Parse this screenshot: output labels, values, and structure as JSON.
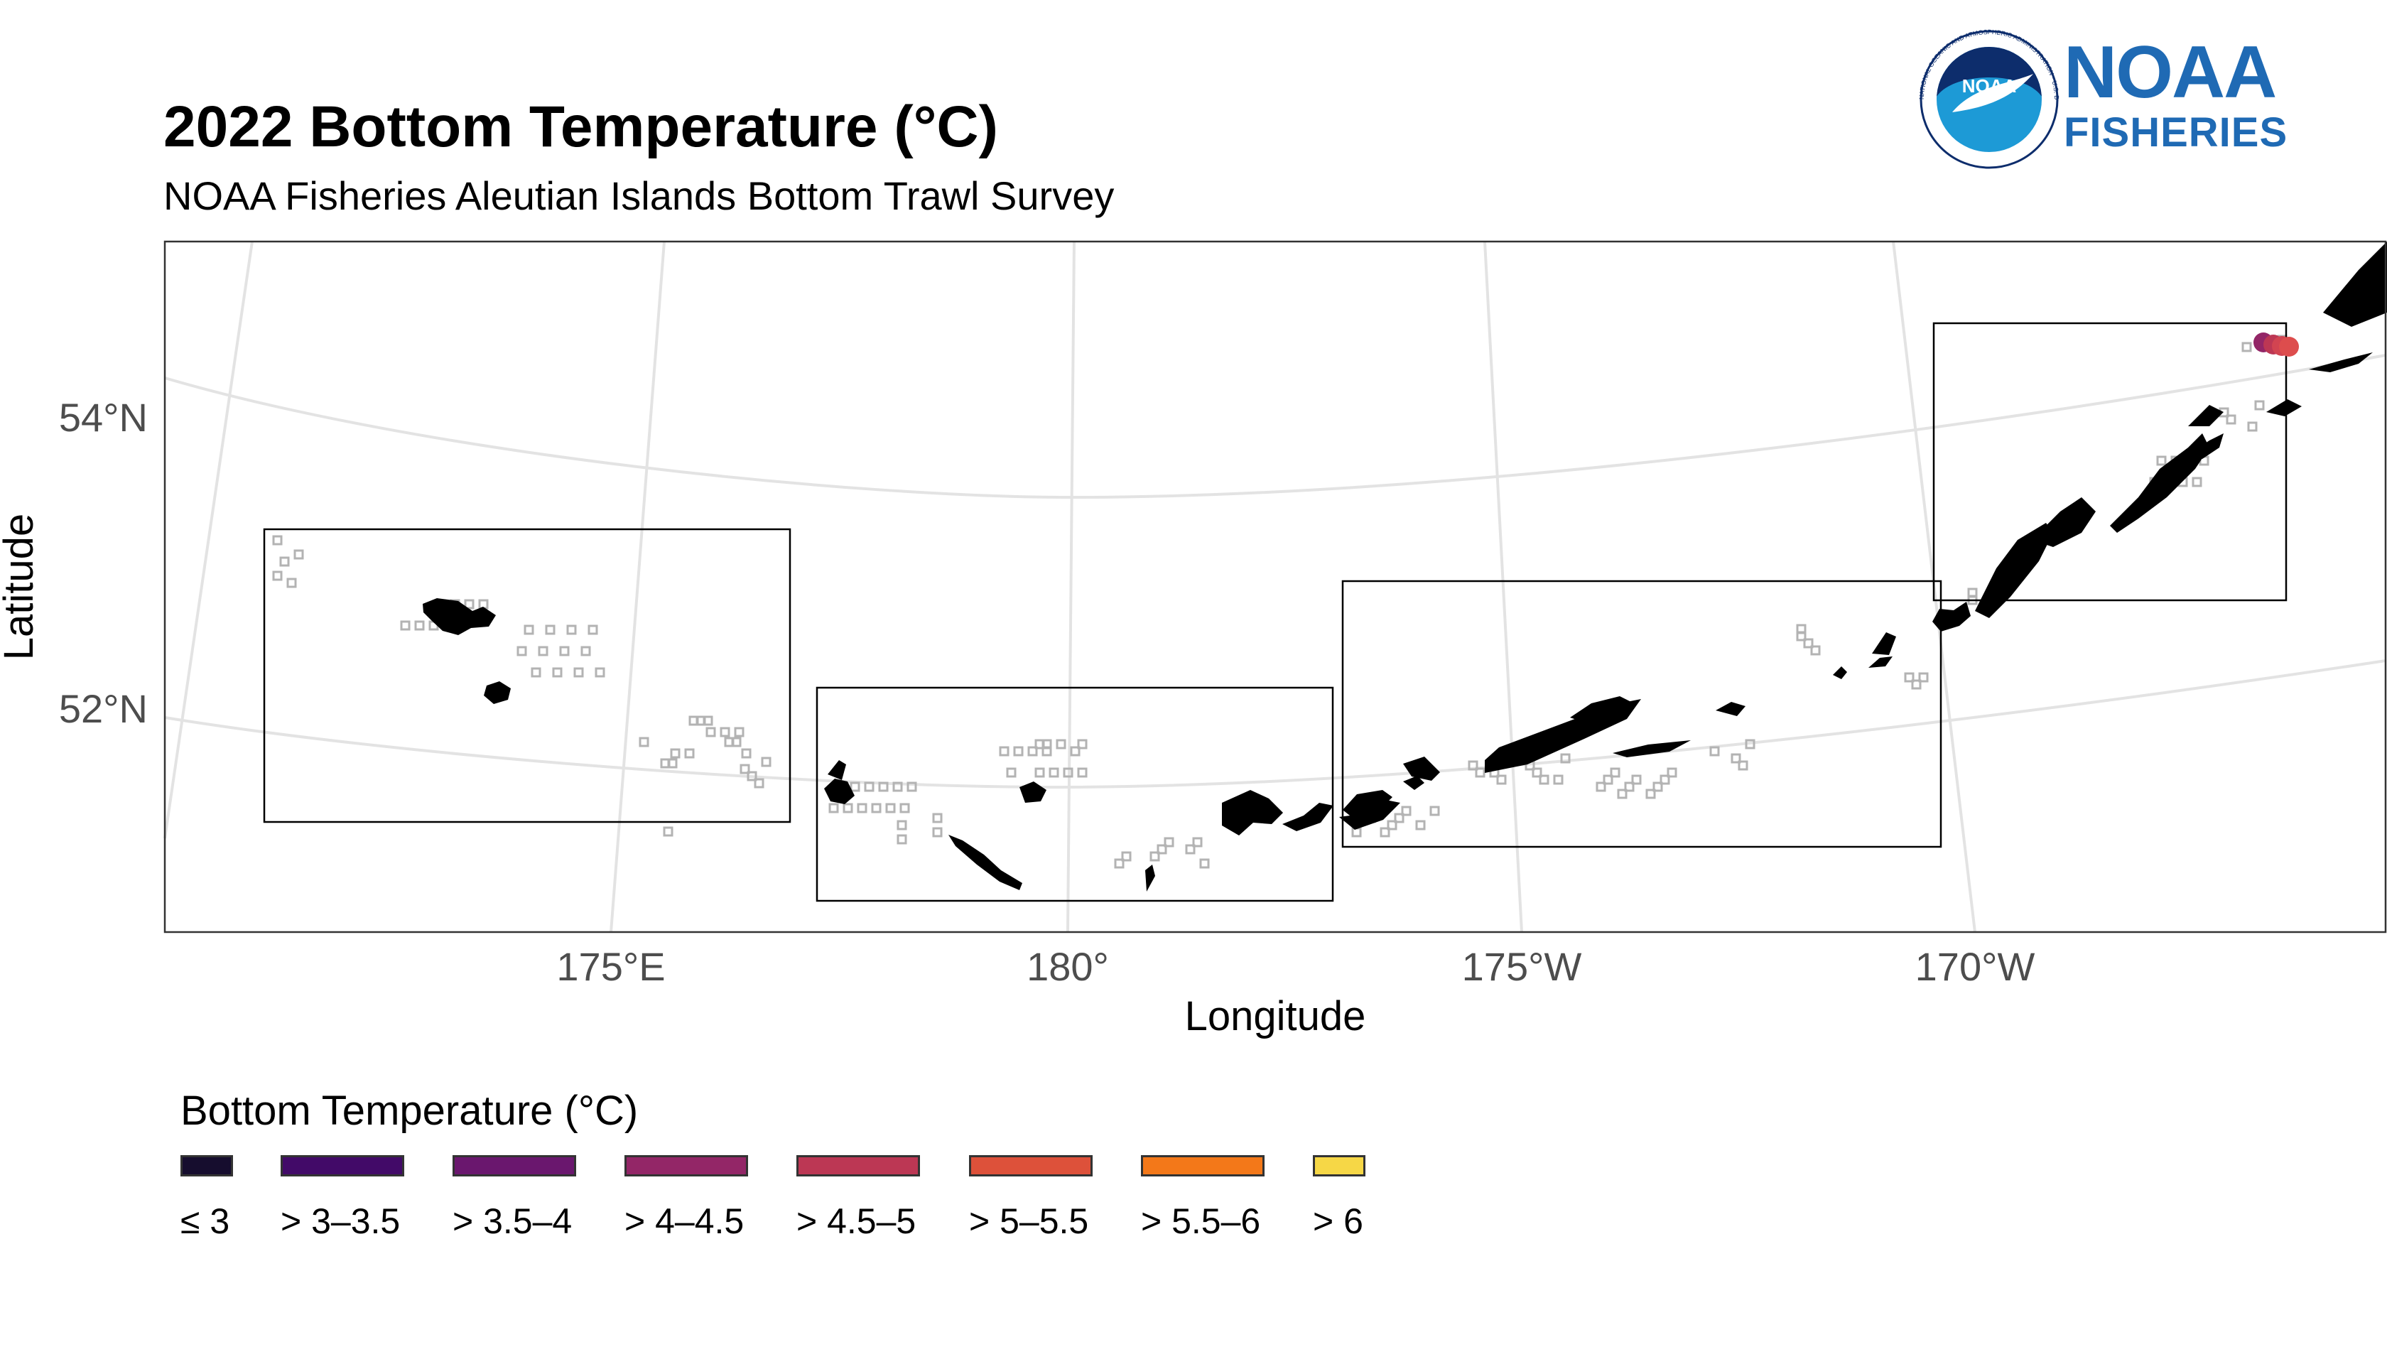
{
  "title": "2022 Bottom Temperature (°C)",
  "subtitle": "NOAA Fisheries Aleutian Islands Bottom Trawl Survey",
  "logo": {
    "emblem_text": "NOAA",
    "ring_text": "NATIONAL OCEANIC AND ATMOSPHERIC ADMINISTRATION · U.S. DEPARTMENT OF COMMERCE",
    "wordmark": "NOAA",
    "wordmark_sub": "FISHERIES",
    "colors": {
      "blue": "#1f6ab4",
      "navy": "#0d2d6c",
      "sky": "#1d9ad6"
    }
  },
  "map": {
    "xlabel": "Longitude",
    "ylabel": "Latitude",
    "x_ticks": [
      "175°E",
      "180°",
      "175°W",
      "170°W"
    ],
    "y_ticks": [
      "54°N",
      "52°N"
    ],
    "land_color": "#000000",
    "station_outline_color": "#b3b3b3",
    "graticule_color": "#e3e3e3",
    "stations_with_data": [
      {
        "lon": -166.9,
        "lat": 54.2,
        "bin": "> 4–4.5"
      },
      {
        "lon": -166.8,
        "lat": 54.2,
        "bin": "> 4.5–5"
      },
      {
        "lon": -166.7,
        "lat": 54.2,
        "bin": "> 4.5–5"
      },
      {
        "lon": -166.6,
        "lat": 54.2,
        "bin": "> 4.5–5"
      }
    ]
  },
  "legend": {
    "title": "Bottom Temperature (°C)",
    "items": [
      {
        "label": "≤ 3",
        "color": "#160d2e"
      },
      {
        "label": "> 3–3.5",
        "color": "#420a68"
      },
      {
        "label": "> 3.5–4",
        "color": "#6a176e"
      },
      {
        "label": "> 4–4.5",
        "color": "#932667"
      },
      {
        "label": "> 4.5–5",
        "color": "#bc3754"
      },
      {
        "label": "> 5–5.5",
        "color": "#dd513a"
      },
      {
        "label": "> 5.5–6",
        "color": "#f37819"
      },
      {
        "label": "> 6",
        "color": "#f6d746"
      }
    ]
  }
}
